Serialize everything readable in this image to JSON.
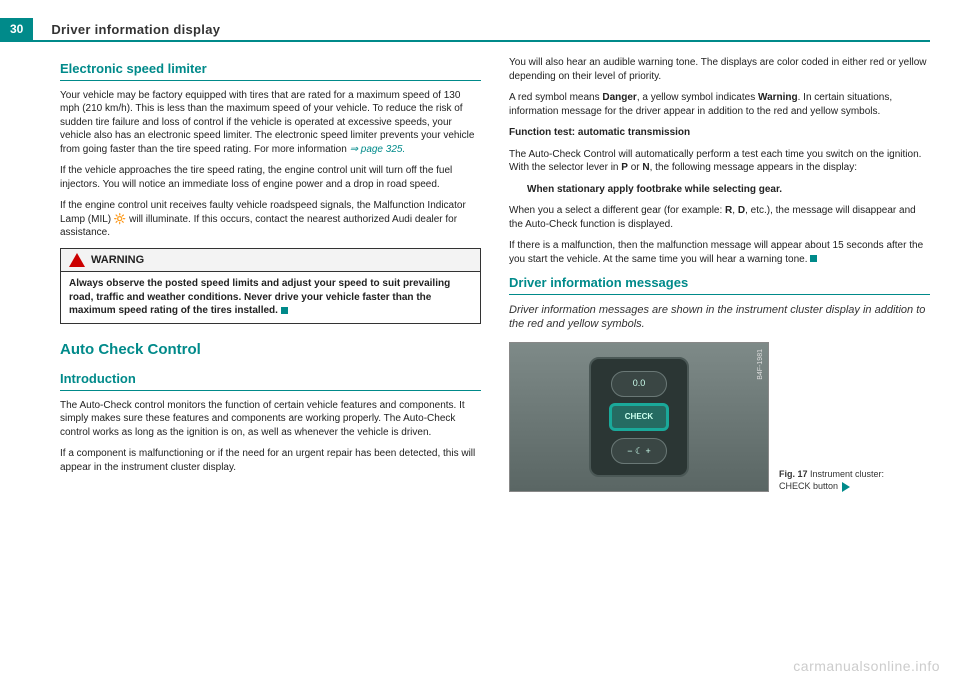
{
  "page_number": "30",
  "header_title": "Driver information display",
  "left": {
    "sec1_title": "Electronic speed limiter",
    "p1": "Your vehicle may be factory equipped with tires that are rated for a maximum speed of 130 mph (210 km/h). This is less than the maximum speed of your vehicle. To reduce the risk of sudden tire failure and loss of control if the vehicle is operated at excessive speeds, your vehicle also has an electronic speed limiter. The electronic speed limiter prevents your vehicle from going faster than the tire speed rating. For more information ",
    "p1_ref": "⇒ page 325.",
    "p2": "If the vehicle approaches the tire speed rating, the engine control unit will turn off the fuel injectors. You will notice an immediate loss of engine power and a drop in road speed.",
    "p3": "If the engine control unit receives faulty vehicle roadspeed signals, the Malfunction Indicator Lamp (MIL) 🔆 will illuminate. If this occurs, contact the nearest authorized Audi dealer for assistance.",
    "warn_label": "WARNING",
    "warn_body": "Always observe the posted speed limits and adjust your speed to suit prevailing road, traffic and weather conditions. Never drive your vehicle faster than the maximum speed rating of the tires installed.",
    "big1": "Auto Check Control",
    "sec2_title": "Introduction",
    "p4": "The Auto-Check control monitors the function of certain vehicle features and components. It simply makes sure these features and components are working properly. The Auto-Check control works as long as the ignition is on, as well as whenever the vehicle is driven.",
    "p5": "If a component is malfunctioning or if the need for an urgent repair has been detected, this will appear in the instrument cluster display."
  },
  "right": {
    "p1": "You will also hear an audible warning tone. The displays are color coded in either red or yellow depending on their level of priority.",
    "p2a": "A red symbol means ",
    "p2_danger": "Danger",
    "p2b": ", a yellow symbol indicates ",
    "p2_warning": "Warning",
    "p2c": ". In certain situations, information message for the driver appear in addition to the red and yellow symbols.",
    "sub1": "Function test: automatic transmission",
    "p3a": "The Auto-Check Control will automatically perform a test each time you switch on the ignition. With the selector lever in ",
    "p3_p": "P",
    "p3b": " or ",
    "p3_n": "N",
    "p3c": ", the following message appears in the display:",
    "msg": "When stationary apply footbrake while selecting gear.",
    "p4a": "When you a select a different gear (for example: ",
    "p4_r": "R",
    "p4b": ", ",
    "p4_d": "D",
    "p4c": ", etc.), the message will disappear and the Auto-Check function is displayed.",
    "p5": "If there is a malfunction, then the malfunction message will appear about 15 seconds after the you start the vehicle. At the same time you will hear a warning tone.",
    "sec_title": "Driver information messages",
    "tagline": "Driver information messages are shown in the instrument cluster display in addition to the red and yellow symbols.",
    "fig_side": "B4F-1981",
    "btn_check": "CHECK",
    "btn_top": "0.0",
    "btn_bot": "−  ☾  +",
    "fig_num": "Fig. 17",
    "fig_caption": "Instrument cluster: CHECK button"
  },
  "watermark": "carmanualsonline.info"
}
